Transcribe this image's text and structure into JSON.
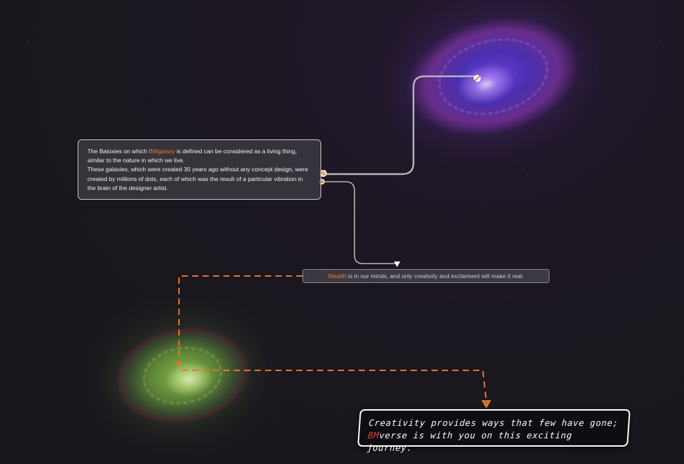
{
  "info_box": {
    "line1_prefix": "The Baloxies on which ",
    "brand": "BMgalaxy",
    "line1_suffix": " is defined can be considered as a living thing, similar to the nature in which we live.",
    "paragraph2": "These galaxies, which were created 30 years ago without any concept design, were created by millions of dots, each of which was the result of a particular vibration in the brain of the designer artist."
  },
  "wealth": {
    "highlight": "Wealth",
    "rest": " is in our minds, and only creativity and excitement will make it real."
  },
  "quote": {
    "line1": "Creativity provides ways that few have gone;",
    "brand_prefix": "BM",
    "line2_rest": "verse is with you on this exciting journey."
  },
  "colors": {
    "accent": "#f07b2a",
    "brand_red": "#e23a3a",
    "connector_gray": "#b8b8b8",
    "dashed_orange": "#e8762a"
  }
}
